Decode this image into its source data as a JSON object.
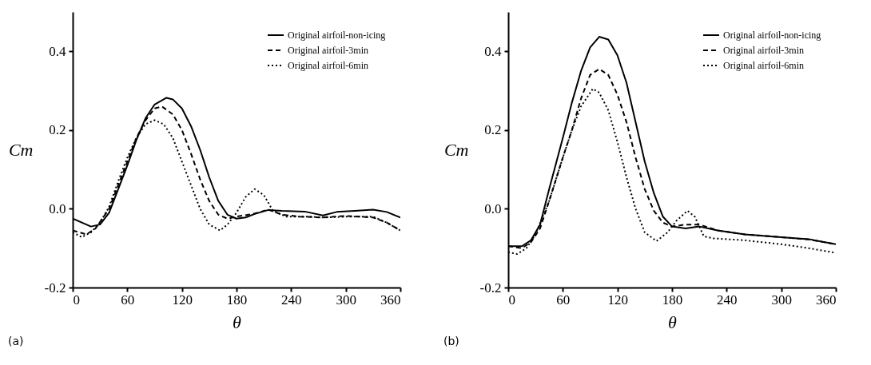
{
  "chart_data": [
    {
      "type": "line",
      "xlabel": "θ",
      "ylabel": "Cm",
      "annotations": [
        "(a)"
      ],
      "xlim": [
        0,
        360
      ],
      "ylim": [
        -0.2,
        0.5
      ],
      "xticks": [
        0,
        60,
        120,
        180,
        240,
        300,
        360
      ],
      "yticks": [
        {
          "value": -0.2,
          "label": "-0.2"
        },
        {
          "value": 0,
          "label": "0.0"
        },
        {
          "value": 0.2,
          "label": "0.2"
        },
        {
          "value": 0.4,
          "label": "0.4"
        }
      ],
      "grid": false,
      "legend": "top right",
      "marker": "none",
      "series": [
        {
          "name": "Original airfoil-non-icing",
          "color": "#000000",
          "line_style": "solid",
          "x": [
            0,
            20,
            30,
            40,
            50,
            60,
            70,
            80,
            90,
            103,
            110,
            120,
            130,
            140,
            150,
            160,
            170,
            180,
            190,
            200,
            215,
            230,
            255,
            275,
            290,
            310,
            330,
            345,
            360
          ],
          "values": [
            -0.025,
            -0.045,
            -0.04,
            -0.01,
            0.05,
            0.11,
            0.175,
            0.23,
            0.265,
            0.282,
            0.278,
            0.255,
            0.21,
            0.15,
            0.08,
            0.02,
            -0.015,
            -0.025,
            -0.022,
            -0.013,
            -0.003,
            -0.005,
            -0.007,
            -0.017,
            -0.008,
            -0.005,
            -0.002,
            -0.008,
            -0.022
          ]
        },
        {
          "name": "Original airfoil-3min",
          "color": "#000000",
          "line_style": "dashed",
          "x": [
            0,
            15,
            25,
            40,
            50,
            60,
            70,
            80,
            90,
            98,
            110,
            120,
            130,
            140,
            150,
            160,
            170,
            180,
            200,
            215,
            230,
            250,
            275,
            300,
            330,
            345,
            360
          ],
          "values": [
            -0.055,
            -0.065,
            -0.05,
            0.0,
            0.06,
            0.12,
            0.18,
            0.225,
            0.255,
            0.26,
            0.24,
            0.2,
            0.14,
            0.075,
            0.02,
            -0.015,
            -0.025,
            -0.02,
            -0.012,
            -0.002,
            -0.015,
            -0.02,
            -0.022,
            -0.018,
            -0.022,
            -0.035,
            -0.055
          ]
        },
        {
          "name": "Original airfoil-6min",
          "color": "#000000",
          "line_style": "dotted",
          "x": [
            0,
            10,
            20,
            30,
            40,
            50,
            60,
            70,
            80,
            90,
            100,
            110,
            120,
            130,
            140,
            150,
            162,
            170,
            180,
            190,
            200,
            210,
            220,
            235,
            260,
            275,
            300,
            330,
            345,
            360
          ],
          "values": [
            -0.06,
            -0.072,
            -0.06,
            -0.035,
            0.005,
            0.07,
            0.13,
            0.18,
            0.215,
            0.225,
            0.215,
            0.18,
            0.12,
            0.06,
            0.0,
            -0.04,
            -0.055,
            -0.04,
            -0.01,
            0.03,
            0.05,
            0.035,
            -0.005,
            -0.02,
            -0.02,
            -0.022,
            -0.02,
            -0.02,
            -0.035,
            -0.055
          ]
        }
      ]
    },
    {
      "type": "line",
      "xlabel": "θ",
      "ylabel": "Cm",
      "annotations": [
        "(b)"
      ],
      "xlim": [
        0,
        360
      ],
      "ylim": [
        -0.2,
        0.5
      ],
      "xticks": [
        0,
        60,
        120,
        180,
        240,
        300,
        360
      ],
      "yticks": [
        {
          "value": -0.2,
          "label": "-0.2"
        },
        {
          "value": 0,
          "label": "0.0"
        },
        {
          "value": 0.2,
          "label": "0.2"
        },
        {
          "value": 0.4,
          "label": "0.4"
        }
      ],
      "grid": false,
      "legend": "top right",
      "marker": "none",
      "series": [
        {
          "name": "Original airfoil-non-icing",
          "color": "#000000",
          "line_style": "solid",
          "x": [
            0,
            15,
            25,
            35,
            45,
            60,
            70,
            80,
            90,
            100,
            110,
            120,
            130,
            140,
            150,
            160,
            170,
            180,
            195,
            210,
            230,
            260,
            300,
            330,
            360
          ],
          "values": [
            -0.095,
            -0.095,
            -0.08,
            -0.04,
            0.05,
            0.18,
            0.27,
            0.35,
            0.41,
            0.437,
            0.43,
            0.39,
            0.32,
            0.22,
            0.12,
            0.04,
            -0.02,
            -0.045,
            -0.05,
            -0.045,
            -0.055,
            -0.065,
            -0.072,
            -0.077,
            -0.09
          ]
        },
        {
          "name": "Original airfoil-3min",
          "color": "#000000",
          "line_style": "dashed",
          "x": [
            0,
            15,
            25,
            35,
            45,
            60,
            70,
            80,
            90,
            100,
            110,
            120,
            130,
            140,
            150,
            160,
            170,
            180,
            195,
            210,
            230,
            260,
            300,
            330,
            360
          ],
          "values": [
            -0.095,
            -0.1,
            -0.085,
            -0.05,
            0.02,
            0.13,
            0.2,
            0.28,
            0.34,
            0.355,
            0.34,
            0.29,
            0.22,
            0.13,
            0.05,
            -0.005,
            -0.035,
            -0.045,
            -0.04,
            -0.04,
            -0.055,
            -0.065,
            -0.072,
            -0.078,
            -0.09
          ]
        },
        {
          "name": "Original airfoil-6min",
          "color": "#000000",
          "line_style": "dotted",
          "x": [
            0,
            10,
            20,
            30,
            45,
            60,
            70,
            80,
            93,
            100,
            110,
            120,
            130,
            140,
            150,
            163,
            175,
            185,
            197,
            205,
            215,
            225,
            260,
            300,
            330,
            360
          ],
          "values": [
            -0.11,
            -0.115,
            -0.1,
            -0.065,
            0.02,
            0.13,
            0.2,
            0.26,
            0.305,
            0.295,
            0.25,
            0.17,
            0.08,
            0.0,
            -0.06,
            -0.082,
            -0.06,
            -0.03,
            -0.005,
            -0.02,
            -0.07,
            -0.075,
            -0.08,
            -0.09,
            -0.1,
            -0.112
          ]
        }
      ]
    }
  ]
}
